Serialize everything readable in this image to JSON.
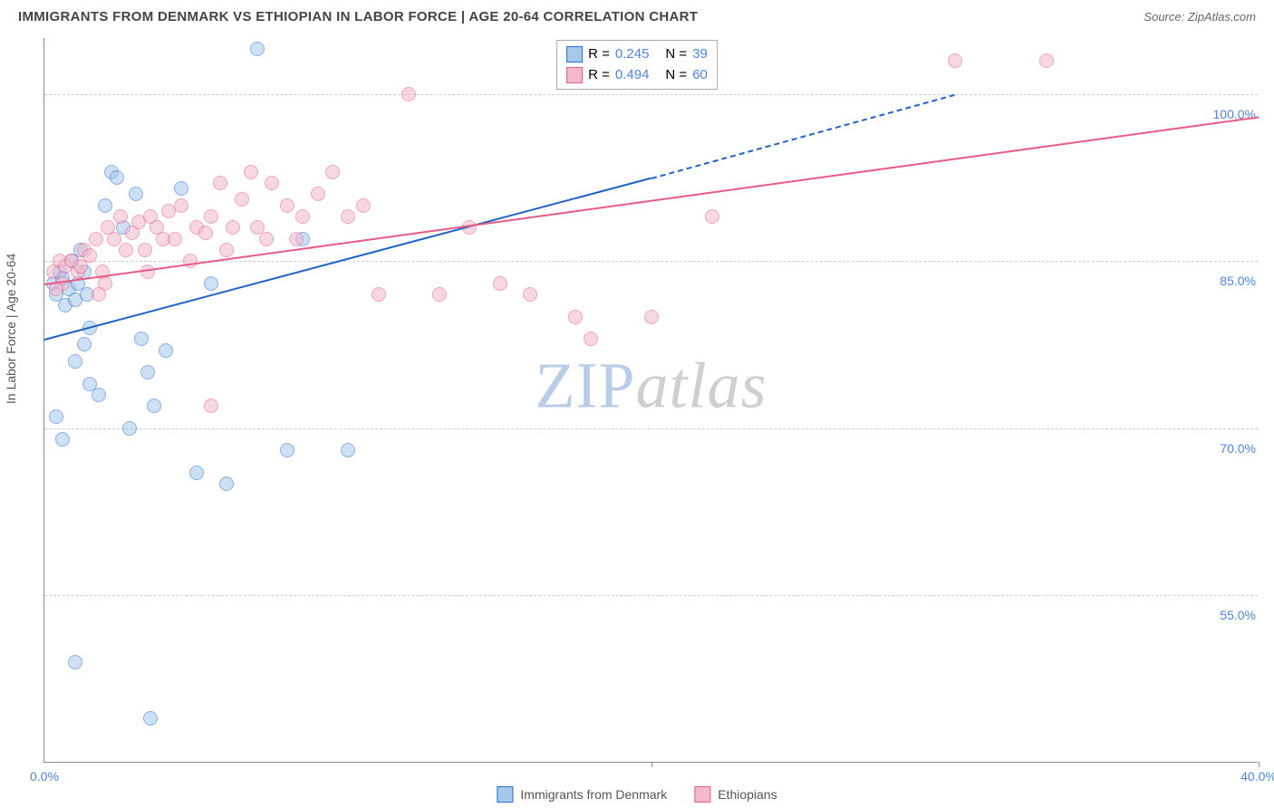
{
  "header": {
    "title": "IMMIGRANTS FROM DENMARK VS ETHIOPIAN IN LABOR FORCE | AGE 20-64 CORRELATION CHART",
    "source_label": "Source:",
    "source_value": "ZipAtlas.com"
  },
  "watermark": {
    "part1": "ZIP",
    "part2": "atlas"
  },
  "chart": {
    "type": "scatter",
    "background_color": "#ffffff",
    "grid_color": "#cccccc",
    "axis_color": "#888888",
    "tick_label_color": "#4a86e8",
    "axis_title_color": "#555555",
    "y_axis_title": "In Labor Force | Age 20-64",
    "xlim": [
      0,
      40
    ],
    "ylim": [
      40,
      105
    ],
    "y_ticks": [
      55,
      70,
      85,
      100
    ],
    "y_tick_labels": [
      "55.0%",
      "70.0%",
      "85.0%",
      "100.0%"
    ],
    "x_ticks": [
      0,
      20,
      40
    ],
    "x_tick_labels": [
      "0.0%",
      "",
      "40.0%"
    ],
    "marker_radius": 8,
    "marker_border_width": 1.2,
    "series": [
      {
        "name": "Immigrants from Denmark",
        "fill_color": "#a6c8ec",
        "fill_opacity": 0.55,
        "stroke_color": "#2a6fd6",
        "trend_color": "#1f62c9",
        "trend_width": 2.2,
        "trend_start": [
          0,
          78
        ],
        "trend_end_solid": [
          20,
          92.5
        ],
        "trend_end_dashed": [
          30,
          100
        ],
        "R": "0.245",
        "N": "39",
        "points": [
          [
            0.3,
            83
          ],
          [
            0.4,
            82
          ],
          [
            0.5,
            84
          ],
          [
            0.6,
            83.5
          ],
          [
            0.7,
            81
          ],
          [
            0.8,
            82.5
          ],
          [
            0.9,
            85
          ],
          [
            1.0,
            81.5
          ],
          [
            1.1,
            83
          ],
          [
            1.2,
            86
          ],
          [
            1.3,
            84
          ],
          [
            1.4,
            82
          ],
          [
            1.5,
            79
          ],
          [
            1.0,
            76
          ],
          [
            1.3,
            77.5
          ],
          [
            1.5,
            74
          ],
          [
            1.8,
            73
          ],
          [
            2.0,
            90
          ],
          [
            2.2,
            93
          ],
          [
            2.4,
            92.5
          ],
          [
            2.6,
            88
          ],
          [
            3.0,
            91
          ],
          [
            3.2,
            78
          ],
          [
            3.4,
            75
          ],
          [
            3.6,
            72
          ],
          [
            4.0,
            77
          ],
          [
            4.5,
            91.5
          ],
          [
            5.0,
            66
          ],
          [
            5.5,
            83
          ],
          [
            6.0,
            65
          ],
          [
            7.0,
            104
          ],
          [
            8.0,
            68
          ],
          [
            8.5,
            87
          ],
          [
            10.0,
            68
          ],
          [
            1.0,
            49
          ],
          [
            3.5,
            44
          ],
          [
            0.4,
            71
          ],
          [
            0.6,
            69
          ],
          [
            2.8,
            70
          ]
        ]
      },
      {
        "name": "Ethiopians",
        "fill_color": "#f2b9c9",
        "fill_opacity": 0.55,
        "stroke_color": "#e85b85",
        "trend_color": "#e85b85",
        "trend_width": 2.2,
        "trend_start": [
          0,
          83
        ],
        "trend_end_solid": [
          40,
          98
        ],
        "trend_end_dashed": null,
        "R": "0.494",
        "N": "60",
        "points": [
          [
            0.3,
            84
          ],
          [
            0.5,
            85
          ],
          [
            0.7,
            84.5
          ],
          [
            0.9,
            85
          ],
          [
            1.1,
            84
          ],
          [
            1.3,
            86
          ],
          [
            1.5,
            85.5
          ],
          [
            1.7,
            87
          ],
          [
            1.9,
            84
          ],
          [
            2.1,
            88
          ],
          [
            2.3,
            87
          ],
          [
            2.5,
            89
          ],
          [
            2.7,
            86
          ],
          [
            2.9,
            87.5
          ],
          [
            3.1,
            88.5
          ],
          [
            3.3,
            86
          ],
          [
            3.5,
            89
          ],
          [
            3.7,
            88
          ],
          [
            3.9,
            87
          ],
          [
            4.1,
            89.5
          ],
          [
            4.3,
            87
          ],
          [
            4.5,
            90
          ],
          [
            5.0,
            88
          ],
          [
            5.3,
            87.5
          ],
          [
            5.5,
            89
          ],
          [
            5.8,
            92
          ],
          [
            6.0,
            86
          ],
          [
            6.2,
            88
          ],
          [
            6.5,
            90.5
          ],
          [
            6.8,
            93
          ],
          [
            7.0,
            88
          ],
          [
            7.3,
            87
          ],
          [
            7.5,
            92
          ],
          [
            8.0,
            90
          ],
          [
            8.3,
            87
          ],
          [
            8.5,
            89
          ],
          [
            9.0,
            91
          ],
          [
            9.5,
            93
          ],
          [
            10.0,
            89
          ],
          [
            10.5,
            90
          ],
          [
            11.0,
            82
          ],
          [
            12.0,
            100
          ],
          [
            13.0,
            82
          ],
          [
            14.0,
            88
          ],
          [
            15.0,
            83
          ],
          [
            16.0,
            82
          ],
          [
            17.5,
            80
          ],
          [
            18.0,
            78
          ],
          [
            20.0,
            80
          ],
          [
            22.0,
            89
          ],
          [
            30.0,
            103
          ],
          [
            33.0,
            103
          ],
          [
            5.5,
            72
          ],
          [
            2.0,
            83
          ],
          [
            1.8,
            82
          ],
          [
            1.2,
            84.5
          ],
          [
            0.6,
            83
          ],
          [
            0.4,
            82.5
          ],
          [
            4.8,
            85
          ],
          [
            3.4,
            84
          ]
        ]
      }
    ],
    "legend_top": {
      "R_label": "R =",
      "N_label": "N ="
    },
    "legend_bottom": [
      {
        "label": "Immigrants from Denmark",
        "fill": "#a6c8ec",
        "stroke": "#2a6fd6"
      },
      {
        "label": "Ethiopians",
        "fill": "#f2b9c9",
        "stroke": "#e85b85"
      }
    ]
  }
}
